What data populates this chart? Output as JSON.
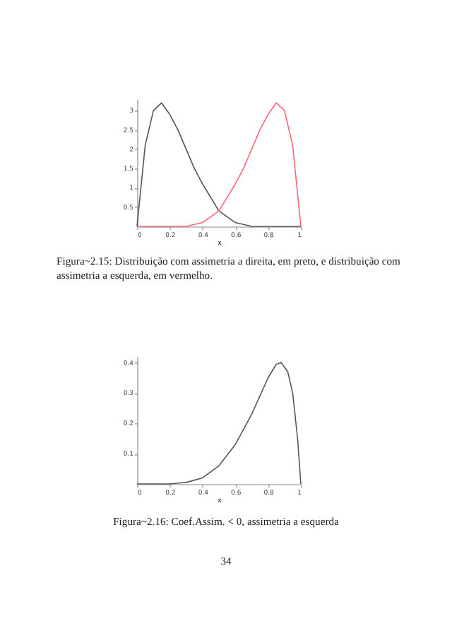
{
  "chart_data": [
    {
      "type": "line",
      "xlabel": "x",
      "xlim": [
        0,
        1
      ],
      "xticks": [
        0,
        0.2,
        0.4,
        0.6,
        0.8,
        1
      ],
      "ylim": [
        0,
        3.3
      ],
      "yticks": [
        0.5,
        1,
        1.5,
        2,
        2.5,
        3
      ],
      "grid": false,
      "series": [
        {
          "color": "#555555",
          "x": [
            0,
            0.05,
            0.1,
            0.15,
            0.2,
            0.25,
            0.3,
            0.35,
            0.4,
            0.5,
            0.6,
            0.7,
            0.8,
            0.9,
            1
          ],
          "values": [
            0,
            2.1,
            3.0,
            3.2,
            2.9,
            2.5,
            2.0,
            1.5,
            1.1,
            0.4,
            0.1,
            0,
            0,
            0,
            0
          ]
        },
        {
          "color": "#ff6677",
          "x": [
            0,
            0.1,
            0.2,
            0.3,
            0.4,
            0.5,
            0.6,
            0.65,
            0.7,
            0.75,
            0.8,
            0.85,
            0.9,
            0.95,
            1
          ],
          "values": [
            0,
            0,
            0,
            0,
            0.1,
            0.4,
            1.1,
            1.5,
            2.0,
            2.5,
            2.9,
            3.2,
            3.0,
            2.1,
            0
          ]
        }
      ],
      "annotations": [
        "Figura~2.15: Distribuição com assimetria a direita, em preto, e distribuição com assimetria a esquerda, em vermelho."
      ]
    },
    {
      "type": "line",
      "xlabel": "x",
      "xlim": [
        0,
        1
      ],
      "xticks": [
        0,
        0.2,
        0.4,
        0.6,
        0.8,
        1
      ],
      "ylim": [
        0,
        0.42
      ],
      "yticks": [
        0.1,
        0.2,
        0.3,
        0.4
      ],
      "grid": false,
      "series": [
        {
          "color": "#555555",
          "x": [
            0,
            0.2,
            0.3,
            0.4,
            0.5,
            0.6,
            0.7,
            0.75,
            0.8,
            0.85,
            0.88,
            0.92,
            0.95,
            0.98,
            1
          ],
          "values": [
            0,
            0,
            0.005,
            0.02,
            0.06,
            0.13,
            0.23,
            0.29,
            0.35,
            0.395,
            0.4,
            0.37,
            0.3,
            0.15,
            0
          ]
        }
      ],
      "annotations": [
        "Figura~2.16: Coef.Assim. < 0, assimetria a esquerda",
        "34"
      ]
    }
  ]
}
